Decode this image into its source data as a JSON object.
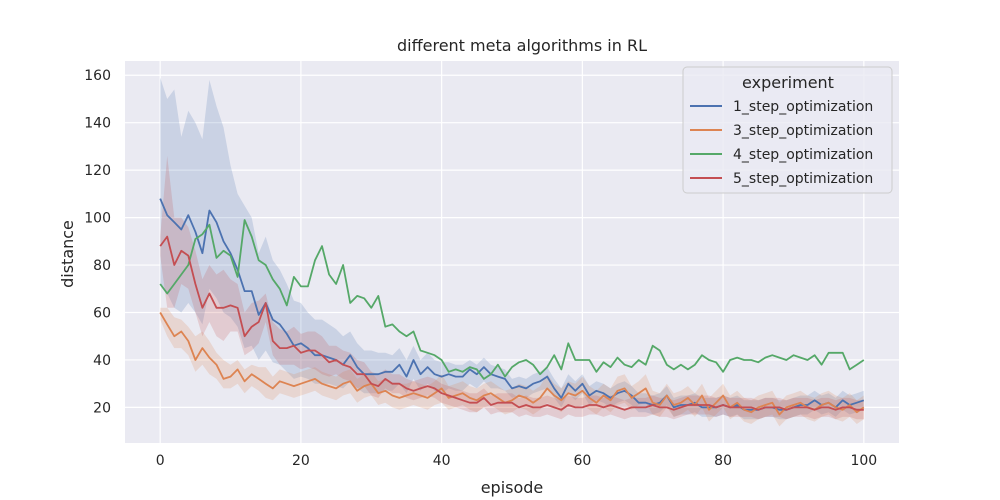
{
  "chart_data": {
    "type": "line",
    "title": "different meta algorithms in RL",
    "xlabel": "episode",
    "ylabel": "distance",
    "xlim": [
      -5,
      105
    ],
    "ylim": [
      5,
      166
    ],
    "xticks": [
      "0",
      "20",
      "40",
      "60",
      "80",
      "100"
    ],
    "xtick_values": [
      0,
      20,
      40,
      60,
      80,
      100
    ],
    "yticks": [
      "20",
      "40",
      "60",
      "80",
      "100",
      "120",
      "140",
      "160"
    ],
    "ytick_values": [
      20,
      40,
      60,
      80,
      100,
      120,
      140,
      160
    ],
    "grid": true,
    "legend": {
      "title": "experiment",
      "position": "top-right"
    },
    "x": [
      0,
      1,
      2,
      3,
      4,
      5,
      6,
      7,
      8,
      9,
      10,
      11,
      12,
      13,
      14,
      15,
      16,
      17,
      18,
      19,
      20,
      21,
      22,
      23,
      24,
      25,
      26,
      27,
      28,
      29,
      30,
      31,
      32,
      33,
      34,
      35,
      36,
      37,
      38,
      39,
      40,
      41,
      42,
      43,
      44,
      45,
      46,
      47,
      48,
      49,
      50,
      51,
      52,
      53,
      54,
      55,
      56,
      57,
      58,
      59,
      60,
      61,
      62,
      63,
      64,
      65,
      66,
      67,
      68,
      69,
      70,
      71,
      72,
      73,
      74,
      75,
      76,
      77,
      78,
      79,
      80,
      81,
      82,
      83,
      84,
      85,
      86,
      87,
      88,
      89,
      90,
      91,
      92,
      93,
      94,
      95,
      96,
      97,
      98,
      99,
      100
    ],
    "series": [
      {
        "name": "1_step_optimization",
        "color": "#4c72b0",
        "values": [
          108,
          101,
          98,
          95,
          101,
          94,
          85,
          103,
          98,
          90,
          85,
          78,
          69,
          69,
          59,
          64,
          57,
          55,
          51,
          46,
          47,
          45,
          42,
          42,
          41,
          40,
          38,
          42,
          37,
          34,
          34,
          34,
          35,
          35,
          38,
          33,
          40,
          34,
          37,
          34,
          33,
          34,
          33,
          33,
          36,
          34,
          37,
          34,
          33,
          32,
          28,
          29,
          28,
          30,
          31,
          33,
          28,
          24,
          30,
          27,
          30,
          25,
          27,
          26,
          24,
          26,
          27,
          25,
          22,
          22,
          21,
          22,
          25,
          20,
          21,
          21,
          22,
          20,
          20,
          20,
          21,
          20,
          21,
          19,
          19,
          19,
          20,
          20,
          19,
          19,
          20,
          21,
          21,
          23,
          21,
          22,
          20,
          23,
          21,
          22,
          23
        ],
        "band_upper": [
          159,
          150,
          154,
          134,
          145,
          140,
          133,
          158,
          147,
          138,
          122,
          110,
          105,
          100,
          85,
          92,
          82,
          78,
          72,
          65,
          64,
          60,
          57,
          57,
          55,
          53,
          50,
          52,
          47,
          44,
          44,
          43,
          43,
          42,
          45,
          40,
          46,
          40,
          43,
          40,
          39,
          39,
          38,
          38,
          40,
          38,
          41,
          38,
          37,
          36,
          32,
          33,
          32,
          34,
          35,
          37,
          32,
          28,
          34,
          31,
          34,
          29,
          31,
          30,
          28,
          30,
          31,
          29,
          26,
          26,
          25,
          26,
          29,
          24,
          25,
          25,
          26,
          24,
          24,
          24,
          25,
          24,
          25,
          23,
          23,
          23,
          24,
          24,
          23,
          23,
          24,
          25,
          25,
          27,
          25,
          26,
          24,
          27,
          25,
          26,
          27
        ],
        "band_lower": [
          72,
          68,
          62,
          60,
          64,
          60,
          55,
          70,
          66,
          60,
          58,
          54,
          45,
          46,
          40,
          44,
          39,
          38,
          35,
          32,
          33,
          32,
          30,
          30,
          30,
          29,
          28,
          31,
          28,
          26,
          26,
          26,
          27,
          27,
          30,
          26,
          32,
          27,
          30,
          27,
          26,
          28,
          27,
          27,
          30,
          28,
          31,
          28,
          28,
          27,
          24,
          25,
          24,
          26,
          27,
          28,
          24,
          20,
          26,
          23,
          26,
          21,
          23,
          22,
          20,
          22,
          23,
          21,
          18,
          18,
          17,
          18,
          21,
          16,
          17,
          17,
          18,
          16,
          16,
          16,
          17,
          16,
          17,
          15,
          15,
          15,
          16,
          16,
          15,
          15,
          16,
          17,
          17,
          19,
          17,
          18,
          16,
          19,
          17,
          18,
          19
        ]
      },
      {
        "name": "3_step_optimization",
        "color": "#dd8452",
        "values": [
          60,
          55,
          50,
          52,
          48,
          40,
          45,
          41,
          38,
          32,
          33,
          36,
          31,
          34,
          32,
          30,
          28,
          31,
          30,
          29,
          30,
          31,
          32,
          30,
          29,
          28,
          30,
          31,
          27,
          29,
          30,
          26,
          27,
          25,
          24,
          25,
          26,
          25,
          24,
          26,
          28,
          24,
          25,
          26,
          24,
          23,
          25,
          26,
          24,
          22,
          23,
          25,
          24,
          22,
          24,
          28,
          25,
          23,
          26,
          25,
          27,
          24,
          22,
          25,
          23,
          27,
          28,
          24,
          26,
          28,
          22,
          21,
          25,
          21,
          22,
          24,
          21,
          25,
          19,
          22,
          25,
          20,
          22,
          19,
          18,
          20,
          21,
          22,
          17,
          20,
          21,
          22,
          20,
          19,
          21,
          22,
          20,
          19,
          21,
          18,
          20
        ],
        "band_upper": [
          62,
          62,
          58,
          57,
          54,
          50,
          52,
          48,
          43,
          40,
          38,
          40,
          36,
          38,
          37,
          37,
          33,
          36,
          35,
          34,
          35,
          36,
          37,
          35,
          34,
          33,
          35,
          36,
          32,
          34,
          35,
          31,
          32,
          30,
          30,
          30,
          31,
          30,
          29,
          31,
          34,
          29,
          30,
          31,
          29,
          28,
          30,
          31,
          29,
          27,
          28,
          30,
          29,
          27,
          29,
          34,
          30,
          28,
          31,
          30,
          33,
          29,
          27,
          30,
          28,
          33,
          34,
          29,
          31,
          34,
          27,
          26,
          30,
          26,
          27,
          29,
          26,
          30,
          24,
          27,
          30,
          25,
          27,
          24,
          23,
          25,
          26,
          27,
          22,
          25,
          26,
          27,
          25,
          24,
          26,
          27,
          25,
          24,
          26,
          23,
          25
        ],
        "band_lower": [
          57,
          50,
          45,
          45,
          42,
          35,
          38,
          34,
          32,
          28,
          28,
          30,
          26,
          29,
          27,
          24,
          23,
          26,
          25,
          24,
          25,
          26,
          27,
          25,
          24,
          23,
          25,
          26,
          22,
          24,
          25,
          21,
          22,
          20,
          19,
          20,
          21,
          20,
          19,
          21,
          22,
          19,
          20,
          21,
          19,
          18,
          20,
          21,
          19,
          17,
          18,
          20,
          19,
          17,
          19,
          22,
          20,
          18,
          21,
          20,
          21,
          19,
          17,
          20,
          18,
          21,
          22,
          19,
          21,
          22,
          17,
          16,
          20,
          16,
          17,
          19,
          16,
          20,
          14,
          17,
          20,
          15,
          17,
          14,
          13,
          15,
          16,
          17,
          12,
          15,
          16,
          17,
          15,
          14,
          16,
          17,
          15,
          14,
          16,
          13,
          15
        ]
      },
      {
        "name": "4_step_optimization",
        "color": "#55a868",
        "values": [
          72,
          68,
          72,
          76,
          80,
          91,
          93,
          97,
          83,
          86,
          84,
          75,
          99,
          92,
          82,
          80,
          74,
          70,
          63,
          75,
          71,
          71,
          82,
          88,
          76,
          72,
          80,
          64,
          67,
          66,
          62,
          67,
          54,
          55,
          52,
          50,
          52,
          44,
          43,
          42,
          40,
          35,
          36,
          35,
          37,
          36,
          32,
          34,
          38,
          33,
          37,
          39,
          40,
          38,
          34,
          37,
          42,
          36,
          47,
          40,
          40,
          40,
          35,
          39,
          37,
          41,
          38,
          37,
          40,
          38,
          46,
          44,
          38,
          36,
          38,
          36,
          38,
          42,
          40,
          39,
          35,
          40,
          41,
          40,
          40,
          39,
          41,
          42,
          41,
          40,
          42,
          41,
          40,
          42,
          38,
          43,
          43,
          43,
          36,
          38,
          40
        ],
        "band_upper": [
          72,
          68,
          72,
          76,
          80,
          91,
          93,
          97,
          83,
          86,
          84,
          75,
          99,
          92,
          82,
          80,
          74,
          70,
          63,
          75,
          71,
          71,
          82,
          88,
          76,
          72,
          80,
          64,
          67,
          66,
          62,
          67,
          54,
          55,
          52,
          50,
          52,
          44,
          43,
          42,
          40,
          35,
          36,
          35,
          37,
          36,
          32,
          34,
          38,
          33,
          37,
          39,
          40,
          38,
          34,
          37,
          42,
          36,
          47,
          40,
          40,
          40,
          35,
          39,
          37,
          41,
          38,
          37,
          40,
          38,
          46,
          44,
          38,
          36,
          38,
          36,
          38,
          42,
          40,
          39,
          35,
          40,
          41,
          40,
          40,
          39,
          41,
          42,
          41,
          40,
          42,
          41,
          40,
          42,
          38,
          43,
          43,
          43,
          36,
          38,
          40
        ],
        "band_lower": [
          72,
          68,
          72,
          76,
          80,
          91,
          93,
          97,
          83,
          86,
          84,
          75,
          99,
          92,
          82,
          80,
          74,
          70,
          63,
          75,
          71,
          71,
          82,
          88,
          76,
          72,
          80,
          64,
          67,
          66,
          62,
          67,
          54,
          55,
          52,
          50,
          52,
          44,
          43,
          42,
          40,
          35,
          36,
          35,
          37,
          36,
          32,
          34,
          38,
          33,
          37,
          39,
          40,
          38,
          34,
          37,
          42,
          36,
          47,
          40,
          40,
          40,
          35,
          39,
          37,
          41,
          38,
          37,
          40,
          38,
          46,
          44,
          38,
          36,
          38,
          36,
          38,
          42,
          40,
          39,
          35,
          40,
          41,
          40,
          40,
          39,
          41,
          42,
          41,
          40,
          42,
          41,
          40,
          42,
          38,
          43,
          43,
          43,
          36,
          38,
          40
        ]
      },
      {
        "name": "5_step_optimization",
        "color": "#c44e52",
        "values": [
          88,
          92,
          80,
          86,
          84,
          72,
          62,
          68,
          62,
          62,
          63,
          62,
          50,
          54,
          56,
          64,
          48,
          45,
          45,
          46,
          43,
          44,
          44,
          42,
          39,
          40,
          38,
          37,
          34,
          34,
          30,
          29,
          32,
          30,
          30,
          28,
          27,
          28,
          29,
          28,
          26,
          25,
          24,
          23,
          22,
          22,
          24,
          21,
          22,
          22,
          22,
          20,
          21,
          20,
          20,
          21,
          20,
          19,
          21,
          20,
          20,
          21,
          21,
          20,
          21,
          20,
          19,
          20,
          20,
          20,
          21,
          20,
          20,
          19,
          20,
          21,
          21,
          21,
          21,
          20,
          21,
          20,
          20,
          20,
          20,
          19,
          20,
          20,
          20,
          19,
          20,
          20,
          20,
          19,
          20,
          20,
          19,
          20,
          20,
          19,
          19
        ],
        "band_upper": [
          92,
          126,
          100,
          100,
          96,
          86,
          74,
          80,
          76,
          78,
          74,
          72,
          60,
          64,
          65,
          68,
          56,
          53,
          52,
          54,
          51,
          52,
          52,
          50,
          46,
          46,
          44,
          43,
          40,
          39,
          35,
          34,
          36,
          34,
          34,
          32,
          31,
          32,
          33,
          32,
          30,
          29,
          28,
          27,
          26,
          26,
          28,
          25,
          26,
          26,
          26,
          24,
          25,
          24,
          24,
          25,
          24,
          23,
          25,
          24,
          24,
          25,
          25,
          24,
          25,
          24,
          23,
          24,
          24,
          24,
          25,
          24,
          24,
          23,
          24,
          25,
          25,
          25,
          25,
          24,
          25,
          24,
          24,
          24,
          24,
          23,
          24,
          24,
          24,
          23,
          24,
          24,
          24,
          23,
          24,
          24,
          23,
          24,
          24,
          23,
          23
        ],
        "band_lower": [
          84,
          62,
          62,
          72,
          70,
          60,
          50,
          56,
          50,
          48,
          52,
          52,
          42,
          44,
          47,
          56,
          42,
          38,
          38,
          38,
          36,
          37,
          36,
          34,
          33,
          34,
          32,
          31,
          28,
          29,
          25,
          24,
          28,
          26,
          26,
          24,
          23,
          24,
          25,
          24,
          22,
          21,
          20,
          19,
          18,
          18,
          20,
          17,
          18,
          18,
          18,
          16,
          17,
          16,
          16,
          17,
          16,
          15,
          17,
          16,
          16,
          17,
          17,
          16,
          17,
          16,
          15,
          16,
          16,
          16,
          17,
          16,
          16,
          15,
          16,
          17,
          17,
          17,
          17,
          16,
          17,
          16,
          16,
          16,
          16,
          15,
          16,
          16,
          16,
          15,
          16,
          16,
          16,
          15,
          16,
          16,
          15,
          16,
          16,
          15,
          15
        ]
      }
    ]
  }
}
